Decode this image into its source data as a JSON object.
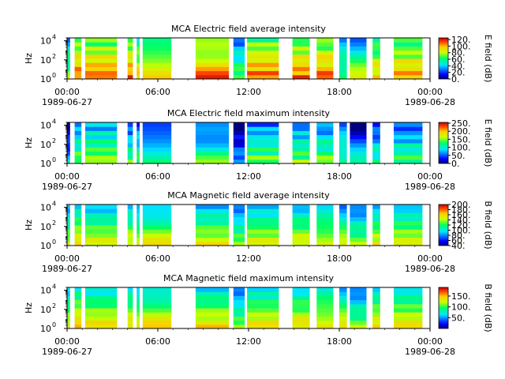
{
  "chart_data": [
    {
      "type": "heatmap",
      "title": "MCA  Electric field average intensity",
      "ylabel": "Hz",
      "y_scale": "log",
      "ylim": [
        1,
        20000
      ],
      "y_ticks": [
        {
          "exp": "0"
        },
        {
          "exp": "2"
        },
        {
          "exp": "4"
        }
      ],
      "xlim": [
        "1989-06-27 00:00",
        "1989-06-28 00:00"
      ],
      "x_ticks": [
        {
          "time": "00:00",
          "date": "1989-06-27"
        },
        {
          "time": "06:00",
          "date": ""
        },
        {
          "time": "12:00",
          "date": ""
        },
        {
          "time": "18:00",
          "date": ""
        },
        {
          "time": "00:00",
          "date": "1989-06-28"
        }
      ],
      "colorbar": {
        "label": "E field (dB)",
        "range": [
          0,
          125
        ],
        "ticks": [
          "0.",
          "20.",
          "40.",
          "60.",
          "80.",
          "100.",
          "120."
        ]
      },
      "data_segments_hours": [
        [
          0.0,
          0.2
        ],
        [
          0.5,
          0.95
        ],
        [
          1.2,
          3.3
        ],
        [
          4.0,
          4.35
        ],
        [
          4.6,
          4.8
        ],
        [
          5.0,
          6.9
        ],
        [
          8.5,
          10.7
        ],
        [
          11.0,
          11.75
        ],
        [
          11.9,
          14.0
        ],
        [
          14.9,
          16.05
        ],
        [
          16.5,
          17.6
        ],
        [
          18.0,
          18.5
        ],
        [
          18.7,
          19.8
        ],
        [
          20.2,
          20.7
        ],
        [
          21.6,
          23.5
        ]
      ],
      "intensity_level": [
        0.45,
        0.7,
        0.7,
        0.7,
        0.6,
        0.65,
        0.7,
        0.4,
        0.7,
        0.7,
        0.7,
        0.4,
        0.45,
        0.6,
        0.65
      ]
    },
    {
      "type": "heatmap",
      "title": "MCA  Electric field maximum intensity",
      "ylabel": "Hz",
      "y_scale": "log",
      "ylim": [
        1,
        20000
      ],
      "y_ticks": [
        {
          "exp": "0"
        },
        {
          "exp": "2"
        },
        {
          "exp": "4"
        }
      ],
      "xlim": [
        "1989-06-27 00:00",
        "1989-06-28 00:00"
      ],
      "x_ticks": [
        {
          "time": "00:00",
          "date": "1989-06-27"
        },
        {
          "time": "06:00",
          "date": ""
        },
        {
          "time": "12:00",
          "date": ""
        },
        {
          "time": "18:00",
          "date": ""
        },
        {
          "time": "00:00",
          "date": "1989-06-28"
        }
      ],
      "colorbar": {
        "label": "E field (dB)",
        "range": [
          0,
          255
        ],
        "ticks": [
          "0.",
          "50.",
          "100.",
          "150.",
          "200.",
          "250."
        ]
      },
      "data_segments_hours": [
        [
          0.0,
          0.2
        ],
        [
          0.5,
          0.95
        ],
        [
          1.2,
          3.3
        ],
        [
          4.0,
          4.35
        ],
        [
          4.6,
          4.8
        ],
        [
          5.0,
          6.9
        ],
        [
          8.5,
          10.7
        ],
        [
          11.0,
          11.75
        ],
        [
          11.9,
          14.0
        ],
        [
          14.9,
          16.05
        ],
        [
          16.5,
          17.6
        ],
        [
          18.0,
          18.5
        ],
        [
          18.7,
          19.8
        ],
        [
          20.2,
          20.7
        ],
        [
          21.6,
          23.5
        ]
      ],
      "intensity_level": [
        0.15,
        0.4,
        0.45,
        0.35,
        0.35,
        0.35,
        0.35,
        0.12,
        0.4,
        0.4,
        0.4,
        0.35,
        0.2,
        0.3,
        0.35
      ]
    },
    {
      "type": "heatmap",
      "title": "MCA  Magnetic field average intensity",
      "ylabel": "Hz",
      "y_scale": "log",
      "ylim": [
        1,
        20000
      ],
      "y_ticks": [
        {
          "exp": "0"
        },
        {
          "exp": "2"
        },
        {
          "exp": "4"
        }
      ],
      "xlim": [
        "1989-06-27 00:00",
        "1989-06-28 00:00"
      ],
      "x_ticks": [
        {
          "time": "00:00",
          "date": "1989-06-27"
        },
        {
          "time": "06:00",
          "date": ""
        },
        {
          "time": "12:00",
          "date": ""
        },
        {
          "time": "18:00",
          "date": ""
        },
        {
          "time": "00:00",
          "date": "1989-06-28"
        }
      ],
      "colorbar": {
        "label": "B field (dB)",
        "range": [
          40,
          200
        ],
        "ticks": [
          "40.",
          "60.",
          "80.",
          "100.",
          "120.",
          "140.",
          "160.",
          "180.",
          "200."
        ]
      },
      "data_segments_hours": [
        [
          0.0,
          0.2
        ],
        [
          0.5,
          0.95
        ],
        [
          1.2,
          3.3
        ],
        [
          4.0,
          4.35
        ],
        [
          4.6,
          4.8
        ],
        [
          5.0,
          6.9
        ],
        [
          8.5,
          10.7
        ],
        [
          11.0,
          11.75
        ],
        [
          11.9,
          14.0
        ],
        [
          14.9,
          16.05
        ],
        [
          16.5,
          17.6
        ],
        [
          18.0,
          18.5
        ],
        [
          18.7,
          19.8
        ],
        [
          20.2,
          20.7
        ],
        [
          21.6,
          23.5
        ]
      ],
      "intensity_level": [
        0.45,
        0.55,
        0.5,
        0.5,
        0.5,
        0.5,
        0.5,
        0.4,
        0.5,
        0.5,
        0.5,
        0.45,
        0.4,
        0.5,
        0.5
      ]
    },
    {
      "type": "heatmap",
      "title": "MCA  Magnetic field maximum intensity",
      "ylabel": "Hz",
      "y_scale": "log",
      "ylim": [
        1,
        20000
      ],
      "y_ticks": [
        {
          "exp": "0"
        },
        {
          "exp": "2"
        },
        {
          "exp": "4"
        }
      ],
      "xlim": [
        "1989-06-27 00:00",
        "1989-06-28 00:00"
      ],
      "x_ticks": [
        {
          "time": "00:00",
          "date": "1989-06-27"
        },
        {
          "time": "06:00",
          "date": ""
        },
        {
          "time": "12:00",
          "date": ""
        },
        {
          "time": "18:00",
          "date": ""
        },
        {
          "time": "00:00",
          "date": "1989-06-28"
        }
      ],
      "colorbar": {
        "label": "B field (dB)",
        "range": [
          0,
          190
        ],
        "ticks": [
          "50.",
          "100.",
          "150."
        ]
      },
      "data_segments_hours": [
        [
          0.0,
          0.2
        ],
        [
          0.5,
          0.95
        ],
        [
          1.2,
          3.3
        ],
        [
          4.0,
          4.35
        ],
        [
          4.6,
          4.8
        ],
        [
          5.0,
          6.9
        ],
        [
          8.5,
          10.7
        ],
        [
          11.0,
          11.75
        ],
        [
          11.9,
          14.0
        ],
        [
          14.9,
          16.05
        ],
        [
          16.5,
          17.6
        ],
        [
          18.0,
          18.5
        ],
        [
          18.7,
          19.8
        ],
        [
          20.2,
          20.7
        ],
        [
          21.6,
          23.5
        ]
      ],
      "intensity_level": [
        0.5,
        0.6,
        0.55,
        0.55,
        0.55,
        0.55,
        0.55,
        0.4,
        0.55,
        0.55,
        0.55,
        0.5,
        0.4,
        0.55,
        0.55
      ]
    }
  ]
}
